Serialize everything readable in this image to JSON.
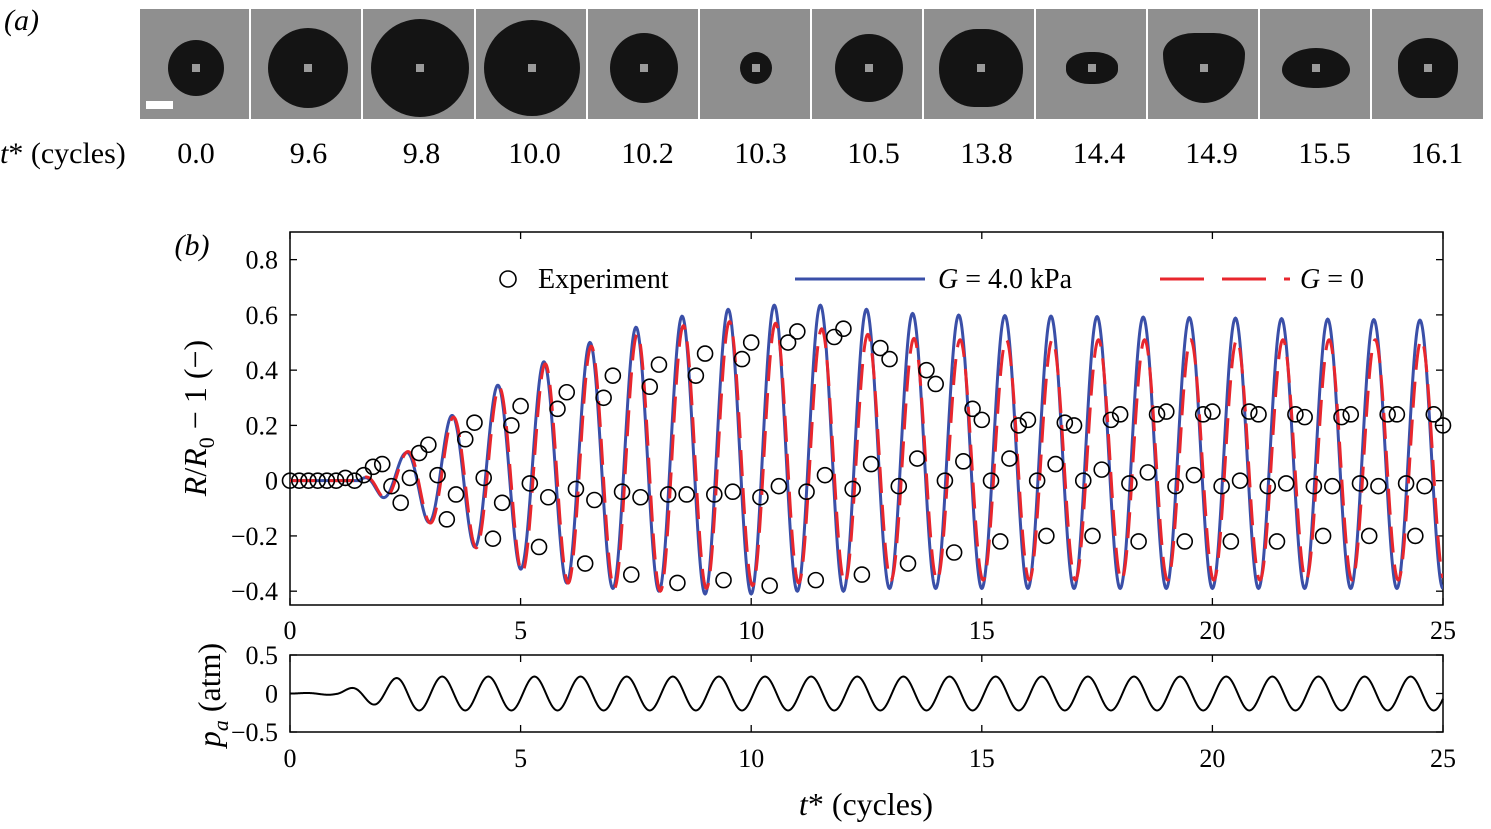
{
  "panel_a_label": "(a)",
  "panel_b_label": "(b)",
  "frames": {
    "time_axis_label": "t* (cycles)",
    "times": [
      "0.0",
      "9.6",
      "9.8",
      "10.0",
      "10.2",
      "10.3",
      "10.5",
      "13.8",
      "14.4",
      "14.9",
      "15.5",
      "16.1"
    ],
    "background_color": "#8f8f8f",
    "bubble_color": "#141414"
  },
  "colors": {
    "experiment": "#000000",
    "g4": "#3a4fa8",
    "g0": "#e8262d",
    "pa": "#000000"
  },
  "chart_data": [
    {
      "type": "line",
      "id": "radius",
      "xlabel": "",
      "ylabel": "R/R0 − 1 (−)",
      "xlim": [
        0,
        25
      ],
      "ylim": [
        -0.45,
        0.9
      ],
      "xticks": [
        0,
        5,
        10,
        15,
        20,
        25
      ],
      "yticks": [
        -0.4,
        -0.2,
        0,
        0.2,
        0.4,
        0.6,
        0.8
      ],
      "ytick_labels": [
        "−0.4",
        "−0.2",
        "0",
        "0.2",
        "0.4",
        "0.6",
        "0.8"
      ],
      "legend_position": "top",
      "series": [
        {
          "name": "Experiment",
          "style": "circles",
          "x": [
            0.0,
            0.2,
            0.4,
            0.6,
            0.8,
            1.0,
            1.2,
            1.4,
            1.6,
            1.8,
            2.0,
            2.2,
            2.4,
            2.6,
            2.8,
            3.0,
            3.2,
            3.4,
            3.6,
            3.8,
            4.0,
            4.2,
            4.4,
            4.6,
            4.8,
            5.0,
            5.2,
            5.4,
            5.6,
            5.8,
            6.0,
            6.2,
            6.4,
            6.6,
            6.8,
            7.0,
            7.2,
            7.4,
            7.6,
            7.8,
            8.0,
            8.2,
            8.4,
            8.6,
            8.8,
            9.0,
            9.2,
            9.4,
            9.6,
            9.8,
            10.0,
            10.2,
            10.4,
            10.6,
            10.8,
            11.0,
            11.2,
            11.4,
            11.6,
            11.8,
            12.0,
            12.2,
            12.4,
            12.6,
            12.8,
            13.0,
            13.2,
            13.4,
            13.6,
            13.8,
            14.0,
            14.2,
            14.4,
            14.6,
            14.8,
            15.0,
            15.2,
            15.4,
            15.6,
            15.8,
            16.0,
            16.2,
            16.4,
            16.6,
            16.8,
            17.0,
            17.2,
            17.4,
            17.6,
            17.8,
            18.0,
            18.2,
            18.4,
            18.6,
            18.8,
            19.0,
            19.2,
            19.4,
            19.6,
            19.8,
            20.0,
            20.2,
            20.4,
            20.6,
            20.8,
            21.0,
            21.2,
            21.4,
            21.6,
            21.8,
            22.0,
            22.2,
            22.4,
            22.6,
            22.8,
            23.0,
            23.2,
            23.4,
            23.6,
            23.8,
            24.0,
            24.2,
            24.4,
            24.6,
            24.8,
            25.0
          ],
          "y": [
            0.0,
            0.0,
            0.0,
            0.0,
            0.0,
            0.0,
            0.01,
            0.0,
            0.02,
            0.05,
            0.06,
            -0.02,
            -0.08,
            0.01,
            0.1,
            0.13,
            0.02,
            -0.14,
            -0.05,
            0.15,
            0.21,
            0.01,
            -0.21,
            -0.08,
            0.2,
            0.27,
            -0.01,
            -0.24,
            -0.06,
            0.26,
            0.32,
            -0.03,
            -0.3,
            -0.07,
            0.3,
            0.38,
            -0.04,
            -0.34,
            -0.06,
            0.34,
            0.42,
            -0.05,
            -0.37,
            -0.05,
            0.38,
            0.46,
            -0.05,
            -0.36,
            -0.04,
            0.44,
            0.5,
            -0.06,
            -0.38,
            -0.02,
            0.5,
            0.54,
            -0.04,
            -0.36,
            0.02,
            0.52,
            0.55,
            -0.03,
            -0.34,
            0.06,
            0.48,
            0.44,
            -0.02,
            -0.3,
            0.08,
            0.4,
            0.35,
            0.0,
            -0.26,
            0.07,
            0.26,
            0.22,
            0.0,
            -0.22,
            0.08,
            0.2,
            0.22,
            0.0,
            -0.2,
            0.06,
            0.21,
            0.2,
            0.0,
            -0.2,
            0.04,
            0.22,
            0.24,
            -0.01,
            -0.22,
            0.03,
            0.24,
            0.25,
            -0.02,
            -0.22,
            0.02,
            0.24,
            0.25,
            -0.02,
            -0.22,
            0.0,
            0.25,
            0.24,
            -0.02,
            -0.22,
            -0.01,
            0.24,
            0.23,
            -0.02,
            -0.2,
            -0.02,
            0.23,
            0.24,
            -0.01,
            -0.2,
            -0.02,
            0.24,
            0.24,
            -0.01,
            -0.2,
            -0.02,
            0.24,
            0.2
          ]
        },
        {
          "name": "G = 4.0 kPa",
          "style": "solid",
          "amplitude_envelope": {
            "x": [
              0,
              1.5,
              2.0,
              2.5,
              3.0,
              4.0,
              5.0,
              6.0,
              7.0,
              8.0,
              9.0,
              10.0,
              11.0,
              12.0,
              13.0,
              14.0,
              25.0
            ],
            "max": [
              0.0,
              0.0,
              0.06,
              0.1,
              0.17,
              0.3,
              0.39,
              0.47,
              0.53,
              0.58,
              0.61,
              0.63,
              0.64,
              0.63,
              0.61,
              0.6,
              0.58
            ],
            "min": [
              0.0,
              0.0,
              -0.06,
              -0.1,
              -0.15,
              -0.24,
              -0.32,
              -0.37,
              -0.39,
              -0.4,
              -0.41,
              -0.41,
              -0.4,
              -0.4,
              -0.39,
              -0.39,
              -0.39
            ]
          },
          "period": 1.0
        },
        {
          "name": "G = 0",
          "style": "dashed",
          "amplitude_envelope": {
            "x": [
              0,
              1.5,
              2.0,
              2.5,
              3.0,
              4.0,
              5.0,
              6.0,
              7.0,
              8.0,
              9.0,
              10.0,
              11.0,
              12.0,
              13.0,
              14.0,
              25.0
            ],
            "max": [
              0.0,
              0.0,
              0.06,
              0.1,
              0.16,
              0.29,
              0.38,
              0.46,
              0.51,
              0.55,
              0.57,
              0.58,
              0.56,
              0.54,
              0.52,
              0.51,
              0.51
            ],
            "min": [
              0.0,
              0.0,
              -0.06,
              -0.1,
              -0.15,
              -0.24,
              -0.33,
              -0.37,
              -0.39,
              -0.4,
              -0.39,
              -0.38,
              -0.37,
              -0.37,
              -0.36,
              -0.36,
              -0.36
            ]
          },
          "period": 1.0
        }
      ]
    },
    {
      "type": "line",
      "id": "pressure",
      "xlabel": "t* (cycles)",
      "ylabel": "pa (atm)",
      "xlim": [
        0,
        25
      ],
      "ylim": [
        -0.5,
        0.5
      ],
      "xticks": [
        0,
        5,
        10,
        15,
        20,
        25
      ],
      "yticks": [
        -0.5,
        0,
        0.5
      ],
      "ytick_labels": [
        "−0.5",
        "0",
        "0.5"
      ],
      "series": [
        {
          "name": "",
          "style": "solid",
          "amplitude_envelope": {
            "x": [
              0,
              1.0,
              1.5,
              2.0,
              2.5,
              25.0
            ],
            "amp": [
              0.0,
              0.02,
              0.1,
              0.17,
              0.22,
              0.22
            ]
          },
          "period": 1.0
        }
      ]
    }
  ],
  "legend": {
    "experiment": "Experiment",
    "g4": "G = 4.0 kPa",
    "g0": "G = 0"
  }
}
